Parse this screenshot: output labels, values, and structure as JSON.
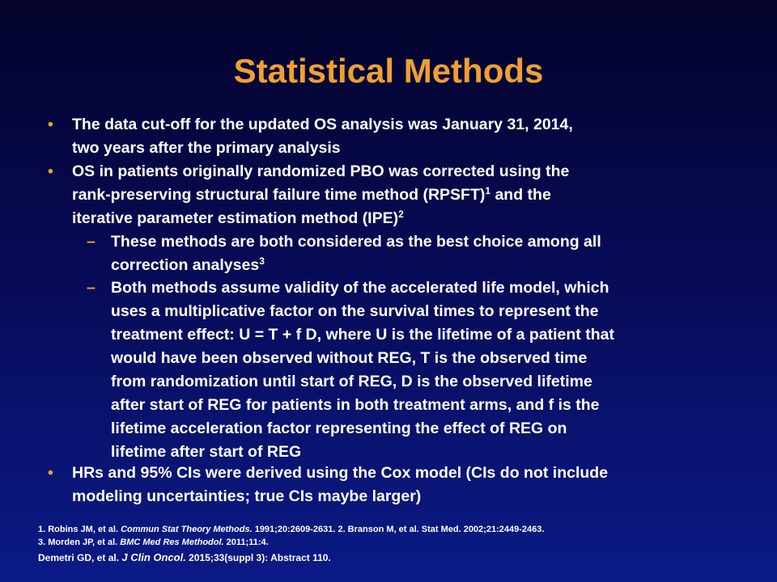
{
  "slide": {
    "title": "Statistical Methods",
    "bullets": [
      {
        "marker": "•",
        "lines": [
          "The data cut-off for the updated OS analysis was January 31, 2014,",
          "two years after the primary analysis"
        ]
      },
      {
        "marker": "•",
        "line1": "OS in patients originally randomized PBO was corrected using the",
        "line2_before": "rank-preserving structural failure time method (RPSFT)",
        "line2_sup": "1",
        "line2_after": " and the",
        "line3_before": "iterative parameter estimation method (IPE)",
        "line3_sup": "2"
      },
      {
        "marker": "–",
        "line1": "These methods are both considered as the best choice among all",
        "line2_before": "correction analyses",
        "line2_sup": "3"
      },
      {
        "marker": "–",
        "lines": [
          "Both methods assume validity of the accelerated life model, which",
          "uses a multiplicative factor on the survival times to represent the",
          "treatment effect: U = T + f D, where U is the lifetime of a patient that",
          "would have been observed without REG, T is the observed time",
          "from randomization until start of REG, D is the observed lifetime",
          "after start of REG for patients in both treatment arms, and f is the",
          "lifetime acceleration factor representing the effect of REG on",
          "lifetime after start of REG"
        ]
      },
      {
        "marker": "•",
        "lines": [
          "HRs and 95%  CIs were derived using the Cox model (CIs do not include",
          "modeling uncertainties; true CIs maybe larger)"
        ]
      }
    ]
  },
  "references": {
    "ref1_prefix": "1. Robins JM, et al. ",
    "ref1_journal": "Commun Stat Theory Methods.",
    "ref1_suffix": " 1991;20:2609-2631.  2. Branson M, et al. Stat Med. 2002;21:2449-2463.",
    "ref3_prefix": "3. Morden JP, et al. ",
    "ref3_journal": "BMC Med Res Methodol.",
    "ref3_suffix": " 2011;11:4."
  },
  "citation": {
    "prefix": "Demetri GD, et al. ",
    "journal": "J Clin Oncol.",
    "suffix": " 2015;33(suppl 3): Abstract 110."
  },
  "colors": {
    "background_top": "#03032b",
    "background_bottom": "#0b1a86",
    "title": "#f0a030",
    "bullet_marker": "#f0a030",
    "text": "#ffffff"
  }
}
